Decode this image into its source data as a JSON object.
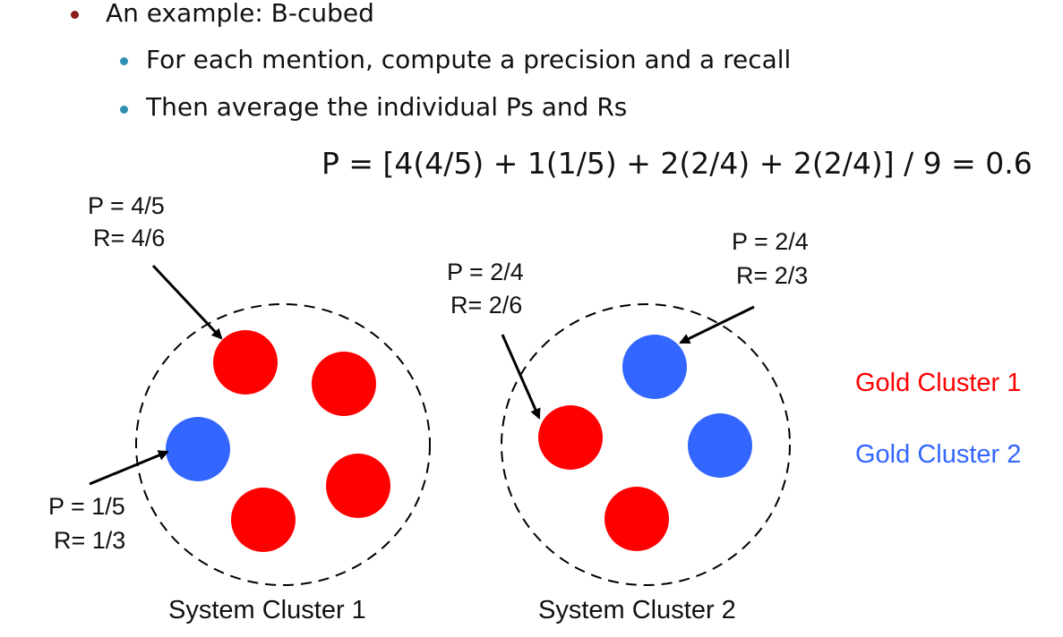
{
  "bullets": {
    "main": "An example: B-cubed",
    "sub1": "For each mention, compute a precision and a recall",
    "sub2": "Then average the individual Ps and Rs"
  },
  "formula": "P = [4(4/5) + 1(1/5) + 2(2/4) + 2(2/4)] / 9 = 0.6",
  "annotations": {
    "a1": {
      "p": "P = 4/5",
      "r": "R= 4/6"
    },
    "a2": {
      "p": "P = 1/5",
      "r": "R= 1/3"
    },
    "a3": {
      "p": "P = 2/4",
      "r": "R= 2/6"
    },
    "a4": {
      "p": "P = 2/4",
      "r": "R= 2/3"
    }
  },
  "clusters": {
    "c1": "System Cluster 1",
    "c2": "System Cluster 2"
  },
  "legend": {
    "gold1": "Gold Cluster 1",
    "gold2": "Gold Cluster 2"
  },
  "colors": {
    "gold1": "#ff0000",
    "gold2": "#3366ff",
    "bullet_main": "#8b1a1a",
    "bullet_sub": "#2e8fb0"
  }
}
